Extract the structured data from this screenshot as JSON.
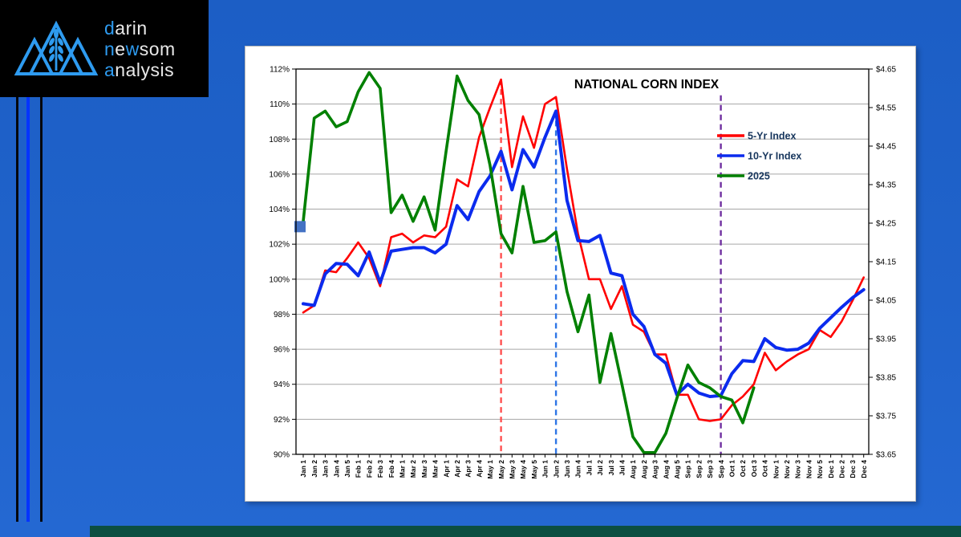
{
  "logo": {
    "lines": [
      {
        "segments": [
          {
            "text": "d",
            "color": "blue"
          },
          {
            "text": "arin",
            "color": "white"
          }
        ]
      },
      {
        "segments": [
          {
            "text": "n",
            "color": "blue"
          },
          {
            "text": "e",
            "color": "white"
          },
          {
            "text": "w",
            "color": "blue"
          },
          {
            "text": "som",
            "color": "white"
          }
        ]
      },
      {
        "segments": [
          {
            "text": "a",
            "color": "blue"
          },
          {
            "text": "nalysis",
            "color": "white"
          }
        ]
      }
    ],
    "icon_color": "#2e9bf0"
  },
  "chart_data": {
    "type": "line",
    "title": "NATIONAL CORN INDEX",
    "left_axis_tick_labels": [
      "112%",
      "110%",
      "108%",
      "106%",
      "104%",
      "102%",
      "100%",
      "98%",
      "96%",
      "94%",
      "92%",
      "90%"
    ],
    "left_axis_range": [
      90,
      112
    ],
    "right_axis_tick_labels": [
      "$4.65",
      "$4.55",
      "$4.45",
      "$4.35",
      "$4.25",
      "$4.15",
      "$4.05",
      "$3.95",
      "$3.85",
      "$3.75",
      "$3.65"
    ],
    "right_axis_range": [
      3.65,
      4.65
    ],
    "grid": true,
    "legend_position": "upper-right-inside",
    "categories": [
      "Jan 1",
      "Jan 2",
      "Jan 3",
      "Jan 4",
      "Jan 5",
      "Feb 1",
      "Feb 2",
      "Feb 3",
      "Feb 4",
      "Mar 1",
      "Mar 2",
      "Mar 3",
      "Mar 4",
      "Apr 1",
      "Apr 2",
      "Apr 3",
      "Apr 4",
      "May 1",
      "May 2",
      "May 3",
      "May 4",
      "May 5",
      "Jun 1",
      "Jun 2",
      "Jun 3",
      "Jun 4",
      "Jul 1",
      "Jul 2",
      "Jul 3",
      "Jul 4",
      "Aug 1",
      "Aug 2",
      "Aug 3",
      "Aug 4",
      "Aug 5",
      "Sep 1",
      "Sep 2",
      "Sep 3",
      "Sep 4",
      "Oct 1",
      "Oct 2",
      "Oct 3",
      "Oct 4",
      "Nov 1",
      "Nov 2",
      "Nov 3",
      "Nov 4",
      "Nov 5",
      "Dec 1",
      "Dec 2",
      "Dec 3",
      "Dec 4"
    ],
    "series": [
      {
        "name": "5-Yr Index",
        "color": "#ff0000",
        "width": 2.6,
        "values": [
          98.1,
          98.5,
          100.5,
          100.4,
          101.2,
          102.1,
          101.2,
          99.6,
          102.4,
          102.6,
          102.1,
          102.5,
          102.4,
          103.0,
          105.7,
          105.3,
          108.1,
          109.8,
          111.4,
          106.4,
          109.3,
          107.5,
          110.0,
          110.4,
          106.3,
          102.6,
          100.0,
          100.0,
          98.3,
          99.6,
          97.4,
          97.0,
          95.7,
          95.7,
          93.4,
          93.4,
          92.0,
          91.9,
          92.0,
          92.8,
          93.3,
          94.0,
          95.8,
          94.8,
          95.3,
          95.7,
          96.0,
          97.1,
          96.7,
          97.6,
          98.8,
          100.1
        ]
      },
      {
        "name": "10-Yr Index",
        "color": "#0b2bee",
        "width": 4,
        "values": [
          98.6,
          98.5,
          100.3,
          100.9,
          100.85,
          100.2,
          101.55,
          99.8,
          101.6,
          101.7,
          101.8,
          101.8,
          101.5,
          102.0,
          104.2,
          103.4,
          105.0,
          105.9,
          107.3,
          105.1,
          107.4,
          106.4,
          108.1,
          109.6,
          104.5,
          102.2,
          102.15,
          102.5,
          100.35,
          100.2,
          98.0,
          97.3,
          95.7,
          95.2,
          93.4,
          94.0,
          93.5,
          93.3,
          93.35,
          94.6,
          95.35,
          95.3,
          96.6,
          96.1,
          95.95,
          96.0,
          96.35,
          97.2,
          97.8,
          98.4,
          98.95,
          99.4
        ]
      },
      {
        "name": "2025",
        "color": "#008000",
        "width": 3.6,
        "values": [
          103.3,
          109.2,
          109.6,
          108.7,
          109.0,
          110.7,
          111.8,
          110.9,
          103.8,
          104.8,
          103.3,
          104.7,
          102.8,
          107.3,
          111.6,
          110.2,
          109.4,
          106.5,
          102.6,
          101.5,
          105.3,
          102.1,
          102.2,
          102.7,
          99.3,
          97.0,
          99.1,
          94.1,
          96.9,
          94.0,
          91.0,
          90.1,
          90.1,
          91.2,
          93.2,
          95.1,
          94.1,
          93.8,
          93.3,
          93.1,
          91.8,
          93.8,
          null,
          null,
          null,
          null,
          null,
          null,
          null,
          null,
          null,
          null
        ]
      }
    ],
    "vertical_dashed_lines": [
      {
        "at_category": "May 2",
        "index": 18,
        "color": "#ff5050",
        "top_value": 111.4
      },
      {
        "at_category": "Jun 2",
        "index": 23,
        "color": "#2e75e6",
        "top_value": 109.6
      },
      {
        "at_category": "Sep 4",
        "index": 38,
        "color": "#7030a0",
        "top_value": 110.5
      }
    ],
    "start_marker": {
      "shape": "square",
      "color": "#4472c4",
      "at_category": "Jan 1",
      "value": 103.0
    },
    "legend_text_color": "#17365d",
    "title_color": "#000000"
  }
}
